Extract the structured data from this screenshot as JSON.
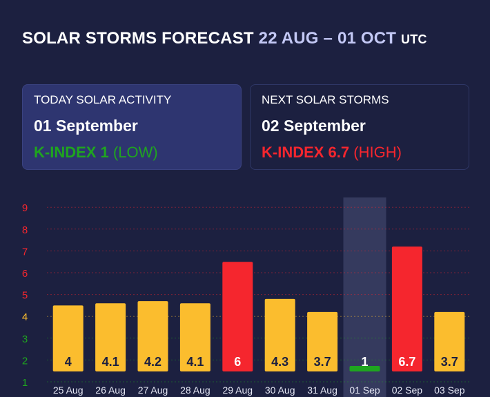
{
  "header": {
    "title": "SOLAR STORMS FORECAST",
    "range": "22 AUG – 01 OCT",
    "tz": "UTC"
  },
  "today": {
    "label": "TODAY SOLAR ACTIVITY",
    "date": "01 September",
    "kindex_label": "K-INDEX 1",
    "level": "(LOW)"
  },
  "next": {
    "label": "NEXT SOLAR STORMS",
    "date": "02 September",
    "kindex_label": "K-INDEX 6.7",
    "level": "(HIGH)"
  },
  "colors": {
    "background": "#1c2040",
    "low": "#1fa51f",
    "moderate": "#fbbd2e",
    "high": "#f5262e",
    "highlight": "#353a5e"
  },
  "chart_data": {
    "type": "bar",
    "categories": [
      "25 Aug",
      "26 Aug",
      "27 Aug",
      "28 Aug",
      "29 Aug",
      "30 Aug",
      "31 Aug",
      "01 Sep",
      "02 Sep",
      "03 Sep"
    ],
    "values": [
      4,
      4.1,
      4.2,
      4.1,
      6,
      4.3,
      3.7,
      1,
      6.7,
      3.7
    ],
    "value_labels": [
      "4",
      "4.1",
      "4.2",
      "4.1",
      "6",
      "4.3",
      "3.7",
      "1",
      "6.7",
      "3.7"
    ],
    "bar_colors": [
      "#fbbd2e",
      "#fbbd2e",
      "#fbbd2e",
      "#fbbd2e",
      "#f5262e",
      "#fbbd2e",
      "#fbbd2e",
      "#1fa51f",
      "#f5262e",
      "#fbbd2e"
    ],
    "highlighted_category": "01 Sep",
    "y_ticks": [
      "1",
      "2",
      "3",
      "4",
      "5",
      "6",
      "7",
      "8",
      "9"
    ],
    "y_tick_colors": [
      "#1fa51f",
      "#1fa51f",
      "#1fa51f",
      "#fbbd2e",
      "#f5262e",
      "#f5262e",
      "#f5262e",
      "#f5262e",
      "#f5262e"
    ],
    "ylim": [
      1,
      9
    ],
    "grid": true
  }
}
